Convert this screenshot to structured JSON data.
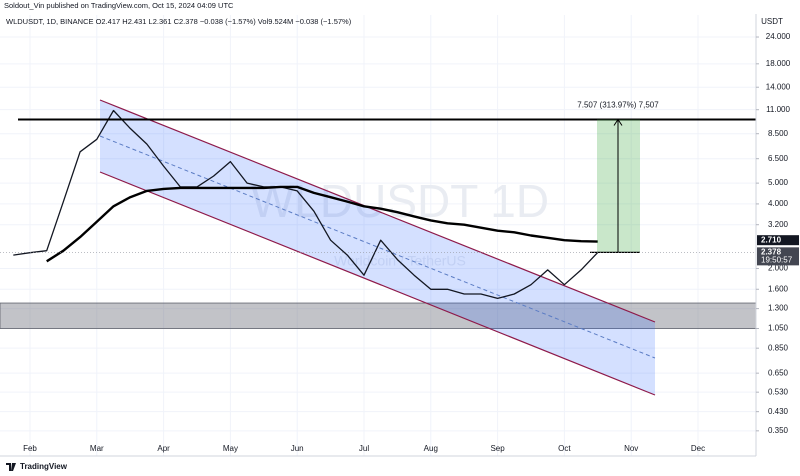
{
  "chart_data": {
    "type": "line",
    "title": "Soldout_Vin published on TradingView.com, Oct 15, 2024 04:09 UTC",
    "subtitle": "WLDUSDT, 1D, BINANCE  O2.417 H2.431 L2.361 C2.378 −0.038 (−1.57%)  Vol9.524M −0.038 (−1.57%)",
    "watermark": "WLDUSDT 1D",
    "watermark_sub": "Worldcoin / TetherUS",
    "currency": "USDT",
    "footer": "TradingView",
    "log_scale": true,
    "grid": true,
    "categories": [
      null,
      "Feb",
      null,
      null,
      null,
      "Mar",
      null,
      null,
      null,
      "Apr",
      null,
      null,
      null,
      "May",
      null,
      null,
      null,
      "Jun",
      null,
      null,
      null,
      "Jul",
      null,
      null,
      null,
      "Aug",
      null,
      null,
      null,
      "Sep",
      null,
      null,
      null,
      "Oct",
      null,
      null,
      null,
      "Nov",
      null,
      null,
      null,
      "Dec",
      null,
      null
    ],
    "series": [
      {
        "color": "#131722",
        "values": [
          2.31,
          2.37,
          2.42,
          4.1,
          7.0,
          8.0,
          10.9,
          9.0,
          7.6,
          6.0,
          4.8,
          4.8,
          5.4,
          6.3,
          5.0,
          4.8,
          4.8,
          4.6,
          3.7,
          2.71,
          2.31,
          1.86,
          2.71,
          2.2,
          1.86,
          1.6,
          1.6,
          1.52,
          1.52,
          1.45,
          1.52,
          1.68,
          1.97,
          1.68,
          1.97,
          2.378,
          null,
          null,
          null,
          null,
          null,
          null,
          null,
          null
        ]
      },
      {
        "color": "#000000",
        "values": [
          null,
          null,
          2.16,
          2.42,
          2.8,
          3.3,
          3.9,
          4.3,
          4.6,
          4.7,
          4.75,
          4.75,
          4.75,
          4.75,
          4.75,
          4.75,
          4.8,
          4.8,
          4.5,
          4.3,
          4.1,
          3.9,
          3.8,
          3.66,
          3.5,
          3.35,
          3.25,
          3.2,
          3.1,
          3.0,
          2.95,
          2.85,
          2.78,
          2.71,
          2.68,
          2.67,
          null,
          null,
          null,
          null,
          null,
          null,
          null,
          null
        ]
      }
    ],
    "ylim": [
      0.27,
      30.4
    ],
    "yticks": [
      {
        "value": 24,
        "label": "24.000"
      },
      {
        "value": 18,
        "label": "18.000"
      },
      {
        "value": 14,
        "label": "14.000"
      },
      {
        "value": 11,
        "label": "11.000"
      },
      {
        "value": 8.5,
        "label": "8.500"
      },
      {
        "value": 6.5,
        "label": "6.500"
      },
      {
        "value": 5,
        "label": "5.000"
      },
      {
        "value": 4,
        "label": "4.000"
      },
      {
        "value": 3.2,
        "label": "3.200"
      },
      {
        "value": 2,
        "label": "2.000"
      },
      {
        "value": 1.6,
        "label": "1.600"
      },
      {
        "value": 1.3,
        "label": "1.300"
      },
      {
        "value": 1.05,
        "label": "1.050"
      },
      {
        "value": 0.85,
        "label": "0.850"
      },
      {
        "value": 0.65,
        "label": "0.650"
      },
      {
        "value": 0.53,
        "label": "0.530"
      },
      {
        "value": 0.43,
        "label": "0.430"
      },
      {
        "value": 0.35,
        "label": "0.350"
      }
    ],
    "resistance": 9.9,
    "support_zone": [
      1.05,
      1.38
    ],
    "projection": {
      "label": "7.507 (313.97%) 7,507",
      "from": 2.378,
      "to": 9.9
    },
    "price_badges": [
      {
        "value": 2.71,
        "label": "2.710",
        "color": "#131722"
      },
      {
        "value": 2.378,
        "label": "2.378",
        "time": "19:50:57",
        "color": "#434651"
      }
    ]
  }
}
